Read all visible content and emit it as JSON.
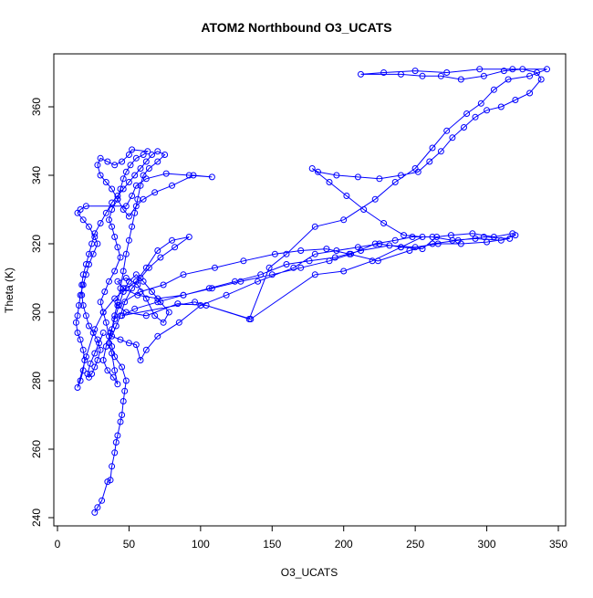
{
  "chart_data": {
    "type": "line",
    "title": "ATOM2 Northbound O3_UCATS",
    "xlabel": "O3_UCATS",
    "ylabel": "Theta (K)",
    "xlim": [
      0,
      350
    ],
    "ylim": [
      240,
      372
    ],
    "xticks": [
      0,
      50,
      100,
      150,
      200,
      250,
      300,
      350
    ],
    "yticks": [
      240,
      260,
      280,
      300,
      320,
      340,
      360
    ],
    "grid": false,
    "legend": "none",
    "series_color": "#0000ff",
    "marker": "open-circle",
    "points": [
      [
        26,
        241.5
      ],
      [
        28,
        243
      ],
      [
        31,
        245
      ],
      [
        35,
        250.5
      ],
      [
        37,
        251
      ],
      [
        38,
        255
      ],
      [
        40,
        259
      ],
      [
        41,
        262
      ],
      [
        42,
        264
      ],
      [
        44,
        268
      ],
      [
        45,
        270
      ],
      [
        46,
        274
      ],
      [
        47,
        277
      ],
      [
        48,
        280
      ],
      [
        45,
        284
      ],
      [
        40,
        287
      ],
      [
        38,
        290
      ],
      [
        36,
        293
      ],
      [
        34,
        297
      ],
      [
        32,
        300
      ],
      [
        30,
        303
      ],
      [
        33,
        306
      ],
      [
        36,
        309
      ],
      [
        40,
        312
      ],
      [
        44,
        316
      ],
      [
        42,
        319
      ],
      [
        40,
        322
      ],
      [
        38,
        325
      ],
      [
        36,
        327
      ],
      [
        38,
        330
      ],
      [
        42,
        333
      ],
      [
        44,
        336
      ],
      [
        46,
        339
      ],
      [
        48,
        341
      ],
      [
        51,
        343
      ],
      [
        55,
        345
      ],
      [
        60,
        346
      ],
      [
        63,
        347
      ],
      [
        52,
        347.5
      ],
      [
        50,
        346
      ],
      [
        45,
        344
      ],
      [
        40,
        343
      ],
      [
        35,
        344
      ],
      [
        30,
        345
      ],
      [
        28,
        343
      ],
      [
        30,
        340
      ],
      [
        34,
        338
      ],
      [
        38,
        336
      ],
      [
        42,
        333
      ],
      [
        46,
        330
      ],
      [
        50,
        328
      ],
      [
        55,
        331
      ],
      [
        60,
        333
      ],
      [
        68,
        335
      ],
      [
        80,
        337
      ],
      [
        95,
        340
      ],
      [
        108,
        339.5
      ],
      [
        92,
        340
      ],
      [
        76,
        340.5
      ],
      [
        62,
        339
      ],
      [
        55,
        337
      ],
      [
        52,
        334
      ],
      [
        48,
        331
      ],
      [
        20,
        331
      ],
      [
        16,
        330
      ],
      [
        14,
        329
      ],
      [
        18,
        327
      ],
      [
        22,
        325
      ],
      [
        26,
        322
      ],
      [
        28,
        320
      ],
      [
        25,
        317
      ],
      [
        22,
        314
      ],
      [
        20,
        311
      ],
      [
        18,
        308
      ],
      [
        16,
        305
      ],
      [
        15,
        302
      ],
      [
        14,
        299
      ],
      [
        13,
        297
      ],
      [
        14,
        294
      ],
      [
        16,
        292
      ],
      [
        18,
        289
      ],
      [
        19,
        286
      ],
      [
        18,
        283
      ],
      [
        16,
        280
      ],
      [
        14,
        278
      ],
      [
        20,
        287
      ],
      [
        26,
        295
      ],
      [
        32,
        300
      ],
      [
        40,
        304
      ],
      [
        48,
        307
      ],
      [
        55,
        309
      ],
      [
        62,
        313
      ],
      [
        70,
        318
      ],
      [
        80,
        321
      ],
      [
        92,
        322
      ],
      [
        82,
        319
      ],
      [
        72,
        316
      ],
      [
        64,
        313
      ],
      [
        58,
        310
      ],
      [
        52,
        307
      ],
      [
        47,
        303
      ],
      [
        44,
        299
      ],
      [
        41,
        296
      ],
      [
        38,
        293
      ],
      [
        44,
        292
      ],
      [
        50,
        291
      ],
      [
        55,
        290.5
      ],
      [
        58,
        286
      ],
      [
        62,
        289
      ],
      [
        70,
        293
      ],
      [
        85,
        297
      ],
      [
        100,
        302
      ],
      [
        118,
        305
      ],
      [
        140,
        309
      ],
      [
        165,
        313
      ],
      [
        180,
        317
      ],
      [
        195,
        318
      ],
      [
        210,
        319
      ],
      [
        225,
        320
      ],
      [
        240,
        319
      ],
      [
        255,
        318.5
      ],
      [
        265,
        322
      ],
      [
        275,
        322.5
      ],
      [
        290,
        323
      ],
      [
        305,
        322
      ],
      [
        318,
        323
      ],
      [
        320,
        322.5
      ],
      [
        310,
        321
      ],
      [
        292,
        321.5
      ],
      [
        276,
        321
      ],
      [
        262,
        322
      ],
      [
        248,
        322
      ],
      [
        236,
        321
      ],
      [
        222,
        320
      ],
      [
        205,
        317
      ],
      [
        190,
        315
      ],
      [
        170,
        313
      ],
      [
        150,
        311
      ],
      [
        128,
        309
      ],
      [
        108,
        307
      ],
      [
        88,
        305
      ],
      [
        70,
        303
      ],
      [
        54,
        301
      ],
      [
        45,
        299
      ],
      [
        96,
        303
      ],
      [
        135,
        298
      ],
      [
        180,
        311
      ],
      [
        200,
        312
      ],
      [
        220,
        315
      ],
      [
        240,
        319
      ],
      [
        255,
        322
      ],
      [
        242,
        322.5
      ],
      [
        228,
        326
      ],
      [
        214,
        330
      ],
      [
        202,
        334
      ],
      [
        190,
        338
      ],
      [
        178,
        342
      ],
      [
        182,
        341
      ],
      [
        195,
        340
      ],
      [
        210,
        339.5
      ],
      [
        225,
        339
      ],
      [
        240,
        340
      ],
      [
        252,
        341
      ],
      [
        260,
        344
      ],
      [
        268,
        347
      ],
      [
        276,
        351
      ],
      [
        284,
        354
      ],
      [
        292,
        357
      ],
      [
        300,
        359
      ],
      [
        310,
        360
      ],
      [
        320,
        362
      ],
      [
        330,
        364
      ],
      [
        338,
        368
      ],
      [
        335,
        370
      ],
      [
        325,
        371
      ],
      [
        312,
        370.5
      ],
      [
        298,
        369
      ],
      [
        282,
        368
      ],
      [
        268,
        369
      ],
      [
        255,
        369
      ],
      [
        240,
        369.5
      ],
      [
        212,
        369.5
      ],
      [
        228,
        370
      ],
      [
        250,
        370.5
      ],
      [
        272,
        370
      ],
      [
        295,
        371
      ],
      [
        318,
        371
      ],
      [
        342,
        371
      ],
      [
        330,
        369
      ],
      [
        315,
        368
      ],
      [
        305,
        365
      ],
      [
        296,
        361
      ],
      [
        286,
        358
      ],
      [
        272,
        353
      ],
      [
        262,
        348
      ],
      [
        250,
        342
      ],
      [
        236,
        338
      ],
      [
        222,
        333
      ],
      [
        200,
        327
      ],
      [
        180,
        325
      ],
      [
        160,
        317
      ],
      [
        148,
        313
      ],
      [
        134,
        298
      ],
      [
        104,
        302
      ],
      [
        84,
        302.5
      ],
      [
        62,
        299
      ],
      [
        48,
        300
      ],
      [
        42,
        302
      ],
      [
        58,
        306
      ],
      [
        74,
        308
      ],
      [
        88,
        311
      ],
      [
        110,
        313
      ],
      [
        130,
        315
      ],
      [
        152,
        317
      ],
      [
        170,
        318
      ],
      [
        188,
        318.5
      ],
      [
        204,
        317
      ],
      [
        224,
        315
      ],
      [
        246,
        318
      ],
      [
        262,
        320
      ],
      [
        280,
        321
      ],
      [
        298,
        322
      ],
      [
        316,
        321.5
      ],
      [
        300,
        320.5
      ],
      [
        282,
        320
      ],
      [
        266,
        320
      ],
      [
        250,
        319
      ],
      [
        232,
        319.5
      ],
      [
        212,
        318
      ],
      [
        194,
        316
      ],
      [
        176,
        315
      ],
      [
        160,
        314
      ],
      [
        142,
        311
      ],
      [
        124,
        309
      ],
      [
        106,
        307
      ],
      [
        88,
        305
      ],
      [
        70,
        304
      ],
      [
        56,
        305
      ],
      [
        46,
        307
      ],
      [
        42,
        309
      ],
      [
        48,
        310
      ],
      [
        56,
        308
      ],
      [
        62,
        304
      ],
      [
        68,
        299
      ],
      [
        74,
        297
      ],
      [
        78,
        300
      ],
      [
        72,
        303
      ],
      [
        66,
        306
      ],
      [
        60,
        309
      ],
      [
        55,
        311
      ],
      [
        50,
        309
      ],
      [
        46,
        306
      ],
      [
        43,
        302
      ],
      [
        40,
        298
      ],
      [
        37,
        294
      ],
      [
        34,
        290
      ],
      [
        32,
        286
      ],
      [
        35,
        283
      ],
      [
        39,
        281
      ],
      [
        42,
        279
      ],
      [
        40,
        283
      ],
      [
        38,
        288
      ],
      [
        36,
        291
      ],
      [
        38,
        295
      ],
      [
        40,
        299
      ],
      [
        42,
        303
      ],
      [
        44,
        307
      ],
      [
        46,
        312
      ],
      [
        48,
        317
      ],
      [
        50,
        321
      ],
      [
        52,
        325
      ],
      [
        54,
        329
      ],
      [
        56,
        333
      ],
      [
        58,
        337
      ],
      [
        60,
        340
      ],
      [
        64,
        342
      ],
      [
        70,
        344
      ],
      [
        75,
        346
      ],
      [
        70,
        347
      ],
      [
        66,
        346
      ],
      [
        62,
        344
      ],
      [
        58,
        342
      ],
      [
        54,
        340
      ],
      [
        50,
        338
      ],
      [
        46,
        336
      ],
      [
        42,
        334
      ],
      [
        38,
        332
      ],
      [
        34,
        329
      ],
      [
        30,
        326
      ],
      [
        26,
        323
      ],
      [
        24,
        320
      ],
      [
        22,
        317
      ],
      [
        20,
        314
      ],
      [
        18,
        311
      ],
      [
        17,
        308
      ],
      [
        17,
        305
      ],
      [
        18,
        302
      ],
      [
        20,
        299
      ],
      [
        22,
        296
      ],
      [
        25,
        294
      ],
      [
        28,
        292
      ],
      [
        30,
        289
      ],
      [
        28,
        286
      ],
      [
        26,
        284
      ],
      [
        24,
        282
      ],
      [
        22,
        281
      ],
      [
        21,
        282
      ],
      [
        23,
        285
      ],
      [
        26,
        288
      ],
      [
        29,
        291
      ],
      [
        32,
        294
      ]
    ]
  }
}
